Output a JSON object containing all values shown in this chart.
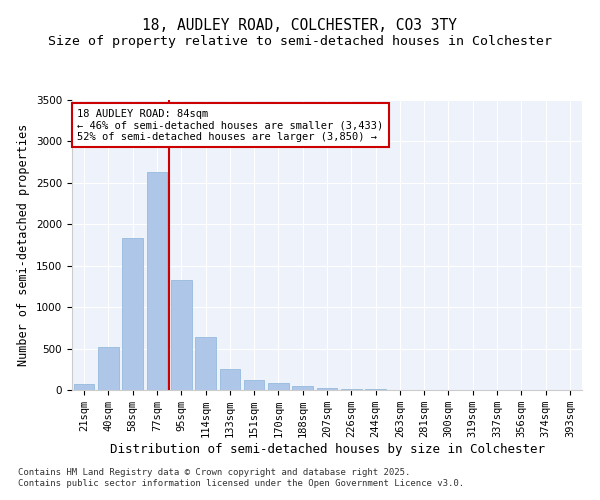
{
  "title": "18, AUDLEY ROAD, COLCHESTER, CO3 3TY",
  "subtitle": "Size of property relative to semi-detached houses in Colchester",
  "xlabel": "Distribution of semi-detached houses by size in Colchester",
  "ylabel": "Number of semi-detached properties",
  "categories": [
    "21sqm",
    "40sqm",
    "58sqm",
    "77sqm",
    "95sqm",
    "114sqm",
    "133sqm",
    "151sqm",
    "170sqm",
    "188sqm",
    "207sqm",
    "226sqm",
    "244sqm",
    "263sqm",
    "281sqm",
    "300sqm",
    "319sqm",
    "337sqm",
    "356sqm",
    "374sqm",
    "393sqm"
  ],
  "values": [
    75,
    520,
    1830,
    2630,
    1330,
    640,
    250,
    120,
    80,
    50,
    30,
    15,
    8,
    5,
    3,
    2,
    1,
    1,
    1,
    0,
    0
  ],
  "bar_color": "#aec6e8",
  "bar_edge_color": "#8ab4d8",
  "vline_x": 3.5,
  "vline_color": "#cc0000",
  "annotation_title": "18 AUDLEY ROAD: 84sqm",
  "annotation_line1": "← 46% of semi-detached houses are smaller (3,433)",
  "annotation_line2": "52% of semi-detached houses are larger (3,850) →",
  "ylim": [
    0,
    3500
  ],
  "yticks": [
    0,
    500,
    1000,
    1500,
    2000,
    2500,
    3000,
    3500
  ],
  "background_color": "#eef2fa",
  "footer_line1": "Contains HM Land Registry data © Crown copyright and database right 2025.",
  "footer_line2": "Contains public sector information licensed under the Open Government Licence v3.0.",
  "title_fontsize": 10.5,
  "subtitle_fontsize": 9.5,
  "ylabel_fontsize": 8.5,
  "xlabel_fontsize": 9,
  "tick_fontsize": 7.5,
  "annotation_fontsize": 7.5,
  "footer_fontsize": 6.5
}
